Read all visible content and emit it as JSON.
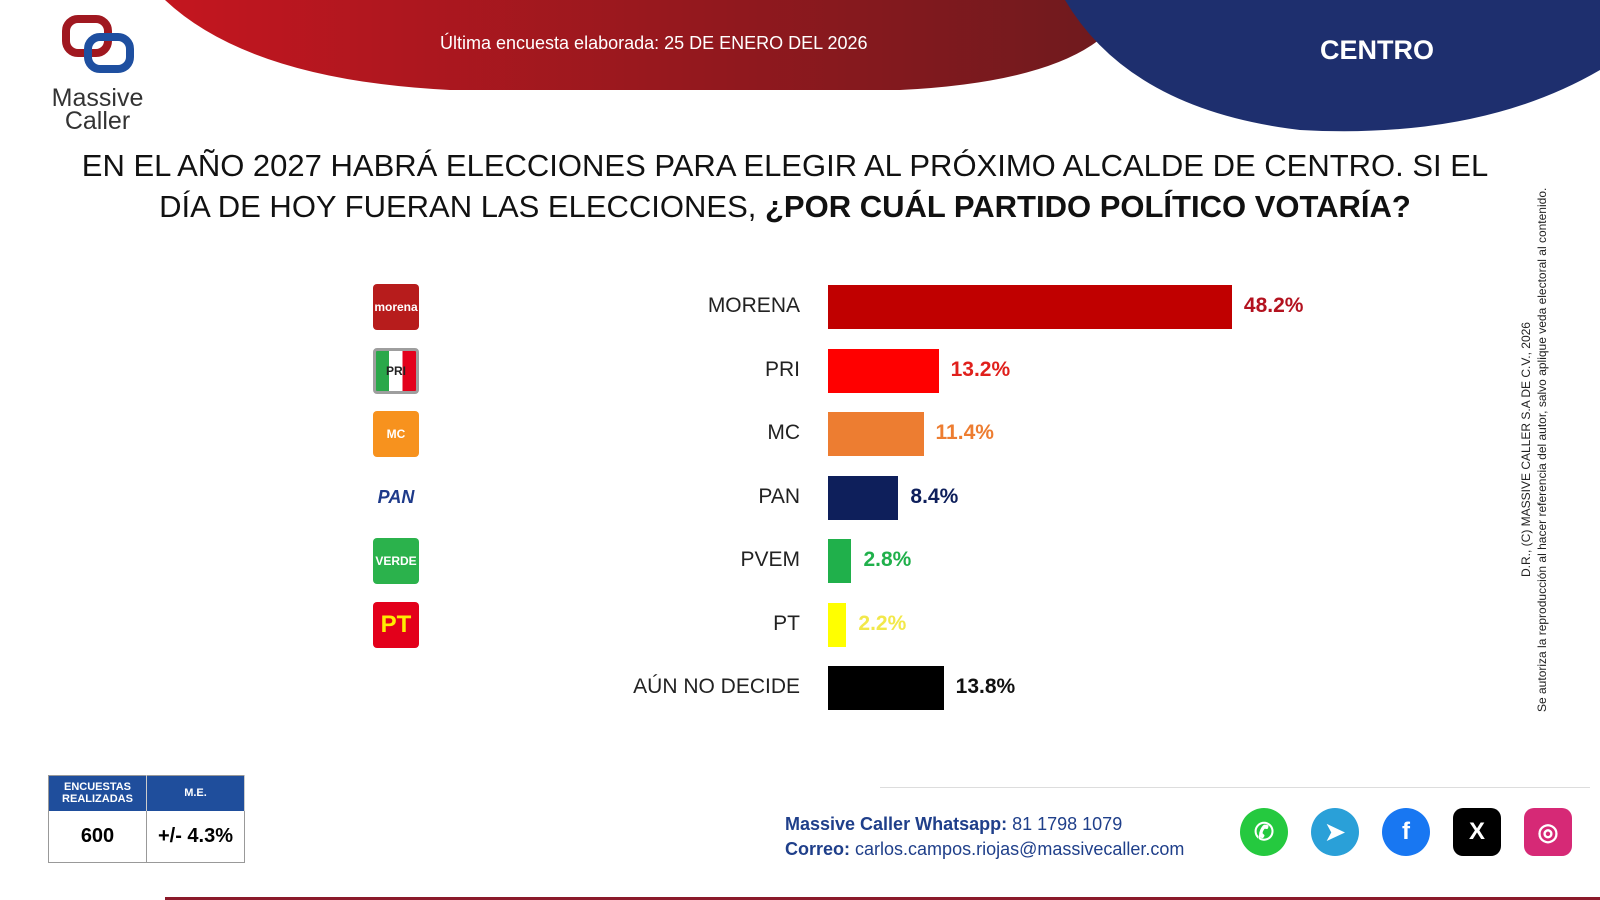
{
  "header": {
    "survey_date": "Última encuesta elaborada: 25 DE ENERO DEL 2026",
    "region": "CENTRO",
    "brand": "Massive Caller",
    "brand_line1": "Massive",
    "brand_line2": "Caller"
  },
  "question": {
    "regular": "EN EL AÑO 2027 HABRÁ ELECCIONES PARA ELEGIR AL PRÓXIMO ALCALDE DE CENTRO. SI EL DÍA DE HOY FUERAN LAS ELECCIONES, ",
    "bold": "¿POR CUÁL PARTIDO POLÍTICO VOTARÍA?"
  },
  "copyright": {
    "line1": "D.R., (C) MASSIVE CALLER S.A DE C.V., 2026",
    "line2": "Se autoriza la reproducción al hacer referencia del autor, salvo aplique veda electoral al contenido."
  },
  "chart_data": {
    "type": "bar",
    "orientation": "horizontal",
    "unit": "%",
    "categories": [
      "MORENA",
      "PRI",
      "MC",
      "PAN",
      "PVEM",
      "PT",
      "AÚN NO DECIDE"
    ],
    "values": [
      48.2,
      13.2,
      11.4,
      8.4,
      2.8,
      2.2,
      13.8
    ],
    "value_labels": [
      "48.2%",
      "13.2%",
      "11.4%",
      "8.4%",
      "2.8%",
      "2.2%",
      "13.8%"
    ],
    "colors": [
      "#c00000",
      "#ff0000",
      "#ed7d31",
      "#0e1f5b",
      "#20b04b",
      "#ffff00",
      "#000000"
    ],
    "label_colors": [
      "#b3121f",
      "#e0201c",
      "#ed7d31",
      "#0e1f5b",
      "#20b04b",
      "#f2e84a",
      "#111111"
    ],
    "logos": [
      "morena",
      "PRI",
      "MC",
      "PAN",
      "VERDE",
      "PT",
      ""
    ],
    "logo_colors": [
      "#b71c1c",
      "#9e9e9e",
      "#f7921e",
      "#ffffff",
      "#2bb24c",
      "#e3001b",
      ""
    ]
  },
  "stats": {
    "surveys_label": "ENCUESTAS REALIZADAS",
    "surveys_value": "600",
    "me_label": "M.E.",
    "me_value": "+/- 4.3%"
  },
  "contact": {
    "whatsapp_label": "Massive Caller Whatsapp:",
    "whatsapp": "81 1798 1079",
    "email_label": "Correo:",
    "email": "carlos.campos.riojas@massivecaller.com"
  },
  "social": [
    {
      "icon": "whatsapp-icon",
      "color": "#25c93f"
    },
    {
      "icon": "telegram-icon",
      "color": "#2aa0d8"
    },
    {
      "icon": "facebook-icon",
      "color": "#1877f2"
    },
    {
      "icon": "x-icon",
      "color": "#000000"
    },
    {
      "icon": "instagram-icon",
      "color": "#d62976"
    }
  ]
}
